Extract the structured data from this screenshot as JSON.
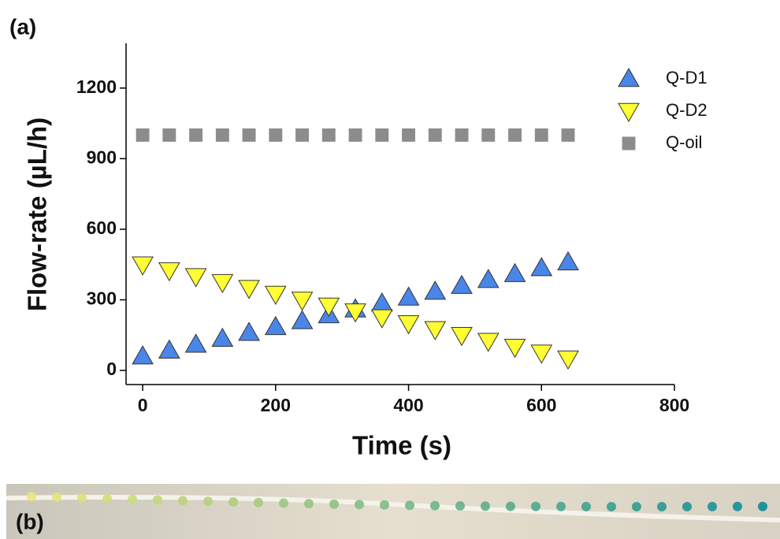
{
  "chart_data": {
    "type": "scatter",
    "panel_a": "(a)",
    "panel_b": "(b)",
    "x_label": "Time (s)",
    "y_label": "Flow-rate (µL/h)",
    "x": [
      0,
      40,
      80,
      120,
      160,
      200,
      240,
      280,
      320,
      360,
      400,
      440,
      480,
      520,
      560,
      600,
      640
    ],
    "series": [
      {
        "name": "Q-D1",
        "color": "#4a86e8",
        "marker": "triangle-up",
        "values": [
          60,
          85,
          110,
          135,
          160,
          185,
          210,
          235,
          260,
          285,
          310,
          335,
          360,
          385,
          410,
          435,
          460
        ]
      },
      {
        "name": "Q-D2",
        "color": "#ffff33",
        "marker": "triangle-down",
        "values": [
          450,
          425,
          400,
          375,
          350,
          325,
          300,
          275,
          250,
          225,
          200,
          175,
          150,
          125,
          100,
          75,
          50
        ]
      },
      {
        "name": "Q-oil",
        "color": "#8c8c8c",
        "marker": "square",
        "values": [
          1000,
          1000,
          1000,
          1000,
          1000,
          1000,
          1000,
          1000,
          1000,
          1000,
          1000,
          1000,
          1000,
          1000,
          1000,
          1000,
          1000
        ]
      }
    ],
    "xlim": [
      -25,
      800
    ],
    "xticks": [
      0,
      200,
      400,
      600,
      800
    ],
    "ylim": [
      -60,
      1390
    ],
    "yticks": [
      0,
      300,
      600,
      900,
      1200
    ],
    "legend": "top-right"
  }
}
